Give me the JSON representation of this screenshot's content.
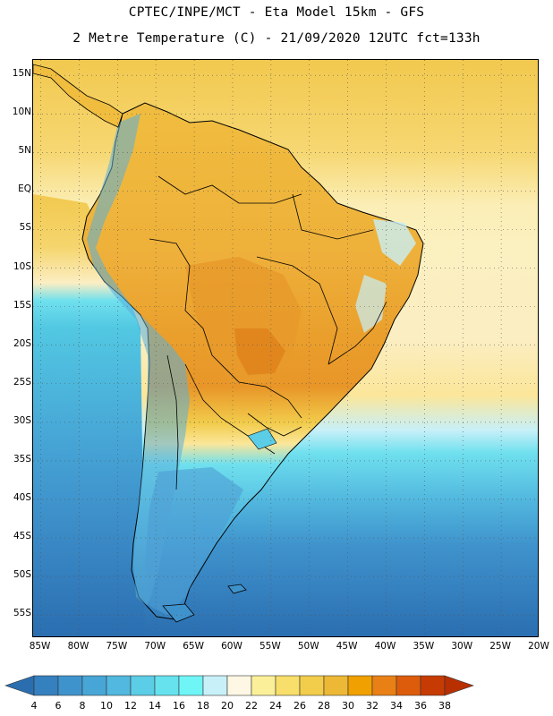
{
  "title": {
    "line1": "CPTEC/INPE/MCT -  Eta Model 15km - GFS",
    "line2": "2 Metre Temperature (C) - 21/09/2020 12UTC fct=133h"
  },
  "map": {
    "lat_labels": [
      "15N",
      "10N",
      "5N",
      "EQ",
      "5S",
      "10S",
      "15S",
      "20S",
      "25S",
      "30S",
      "35S",
      "40S",
      "45S",
      "50S",
      "55S"
    ],
    "lon_labels": [
      "85W",
      "80W",
      "75W",
      "70W",
      "65W",
      "60W",
      "55W",
      "50W",
      "45W",
      "40W",
      "35W",
      "30W",
      "25W",
      "20W"
    ],
    "lat_values": [
      15,
      10,
      5,
      0,
      -5,
      -10,
      -15,
      -20,
      -25,
      -30,
      -35,
      -40,
      -45,
      -50,
      -55
    ],
    "lon_values": [
      -85,
      -80,
      -75,
      -70,
      -65,
      -60,
      -55,
      -50,
      -45,
      -40,
      -35,
      -30,
      -25,
      -20
    ],
    "lat_range": [
      -58,
      17
    ],
    "lon_range": [
      -86,
      -20
    ],
    "grid": "dotted"
  },
  "colorbar": {
    "labels": [
      "4",
      "6",
      "8",
      "10",
      "12",
      "14",
      "16",
      "18",
      "20",
      "22",
      "24",
      "26",
      "28",
      "30",
      "32",
      "34",
      "36",
      "38"
    ],
    "colors": [
      "#2a6eb0",
      "#3580bf",
      "#3f93cc",
      "#47a6d6",
      "#52b8df",
      "#5ccde6",
      "#66e2ee",
      "#70f5f7",
      "#c8f0f8",
      "#fdf7e4",
      "#fbf099",
      "#f8de6a",
      "#f2cc4b",
      "#ecb835",
      "#f0a000",
      "#e98016",
      "#dc5c0c",
      "#c63b04",
      "#b82f02"
    ]
  },
  "colors": {
    "ocean_north_warm": "#f2cd60",
    "ocean_mid_pale": "#fbeeb0",
    "ocean_cyan": "#5ccde6",
    "ocean_south": "#3f93cc",
    "ocean_far_south": "#2a6eb0",
    "land_hot": "#eba836",
    "land_hottest": "#e48a20",
    "andes_cold": "#5aa0d0"
  }
}
